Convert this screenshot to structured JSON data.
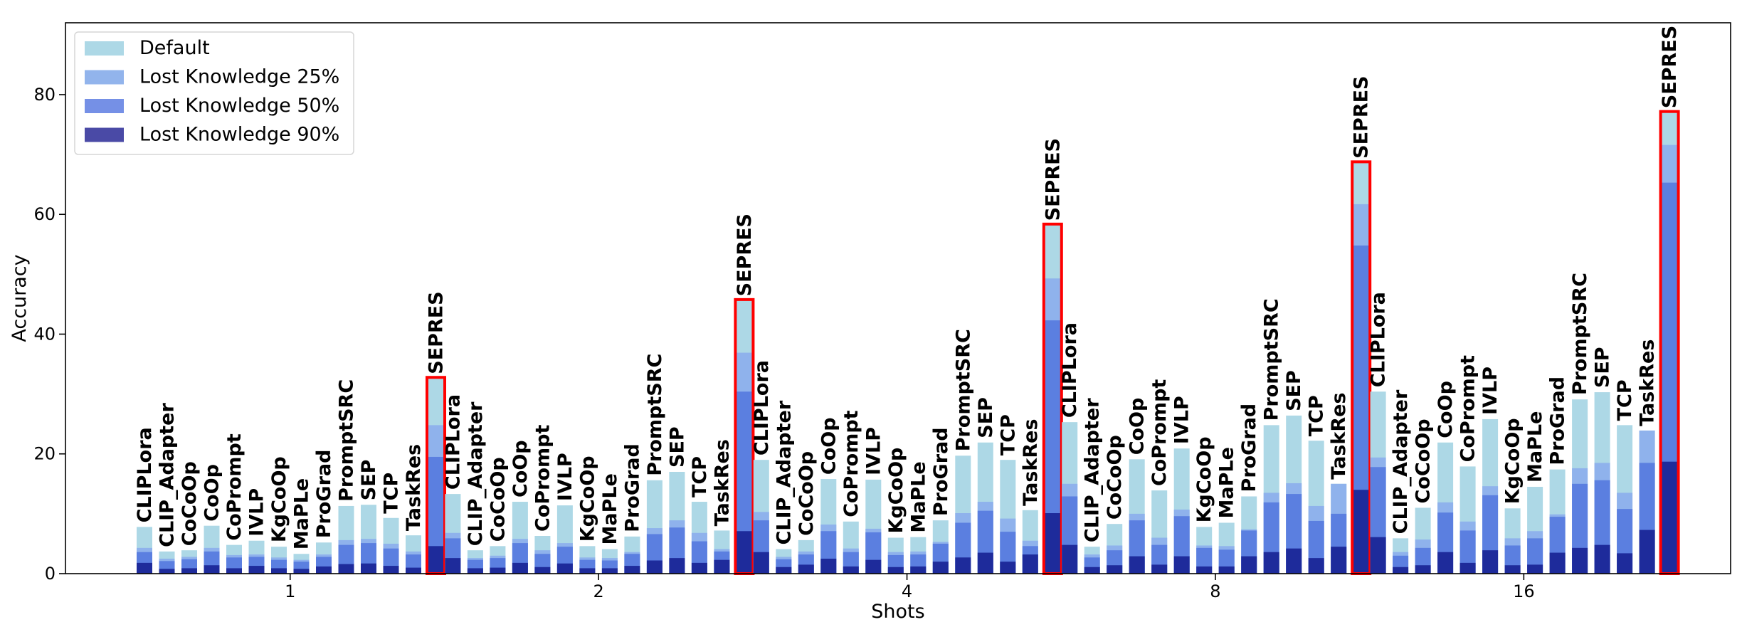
{
  "chart_data": {
    "type": "bar",
    "stacked": true,
    "xlabel": "Shots",
    "ylabel": "Accuracy",
    "ylim": [
      0,
      92
    ],
    "yticks": [
      0,
      20,
      40,
      60,
      80
    ],
    "groups": [
      "1",
      "2",
      "4",
      "8",
      "16"
    ],
    "methods": [
      "CLIPLora",
      "CLIP_Adapter",
      "CoCoOp",
      "CoOp",
      "CoPrompt",
      "IVLP",
      "KgCoOp",
      "MaPLe",
      "ProGrad",
      "PromptSRC",
      "SEP",
      "TCP",
      "TaskRes",
      "SEPRES"
    ],
    "highlighted_method": "SEPRES",
    "highlight_color": "#ff0000",
    "legend": {
      "position": "upper-left",
      "entries": [
        {
          "name": "Default",
          "color": "#add8e6"
        },
        {
          "name": "Lost Knowledge 25%",
          "color": "#92b4ec"
        },
        {
          "name": "Lost Knowledge 50%",
          "color": "#7590e6"
        },
        {
          "name": "Lost Knowledge 90%",
          "color": "#4a4aa6"
        }
      ]
    },
    "series_colors": [
      "#add8e6",
      "#8fb2ec",
      "#5b7fe0",
      "#1e2b9b"
    ],
    "series": [
      {
        "name": "Default",
        "values": [
          [
            7.8,
            3.7,
            3.9,
            8.0,
            4.8,
            5.5,
            4.5,
            3.3,
            5.2,
            11.3,
            11.5,
            9.3,
            6.4,
            32.6
          ],
          [
            13.3,
            3.9,
            4.6,
            12.0,
            6.3,
            11.4,
            4.6,
            4.1,
            6.2,
            15.6,
            17.0,
            12.0,
            7.2,
            45.6
          ],
          [
            19.0,
            4.1,
            5.6,
            15.8,
            8.7,
            15.7,
            6.0,
            6.1,
            8.9,
            19.7,
            21.9,
            19.0,
            10.6,
            58.2
          ],
          [
            25.3,
            4.5,
            8.3,
            19.1,
            13.9,
            20.9,
            7.8,
            8.5,
            12.9,
            24.8,
            26.4,
            22.2,
            15.0,
            68.6
          ],
          [
            30.4,
            5.9,
            11.0,
            21.9,
            17.9,
            25.8,
            10.9,
            14.5,
            17.4,
            29.1,
            30.3,
            24.8,
            23.9,
            77.0
          ]
        ]
      },
      {
        "name": "Lost Knowledge 25%",
        "values": [
          [
            4.3,
            2.5,
            2.8,
            4.3,
            3.1,
            3.2,
            2.7,
            2.3,
            3.2,
            5.6,
            5.8,
            5.0,
            3.7,
            24.8
          ],
          [
            6.8,
            2.6,
            3.0,
            5.8,
            3.9,
            5.1,
            2.7,
            2.6,
            3.6,
            7.6,
            8.9,
            6.8,
            4.1,
            36.9
          ],
          [
            10.3,
            2.8,
            3.7,
            8.2,
            4.2,
            7.5,
            3.6,
            3.7,
            5.3,
            10.1,
            12.0,
            9.2,
            5.5,
            49.3
          ],
          [
            15.0,
            3.2,
            4.7,
            10.0,
            6.0,
            10.7,
            4.7,
            4.6,
            7.4,
            13.5,
            15.1,
            11.3,
            15.0,
            61.7
          ],
          [
            19.4,
            3.6,
            5.7,
            11.9,
            8.7,
            14.6,
            5.9,
            7.1,
            9.9,
            17.6,
            18.5,
            13.5,
            23.9,
            71.6
          ]
        ]
      },
      {
        "name": "Lost Knowledge 50%",
        "values": [
          [
            3.6,
            2.1,
            2.4,
            3.7,
            2.7,
            2.8,
            2.3,
            2.0,
            2.8,
            4.8,
            5.1,
            4.2,
            3.2,
            19.5
          ],
          [
            5.9,
            2.3,
            2.6,
            5.1,
            3.3,
            4.5,
            2.3,
            2.2,
            3.3,
            6.6,
            7.7,
            5.4,
            3.7,
            30.4
          ],
          [
            8.9,
            2.4,
            3.2,
            7.1,
            3.6,
            6.9,
            3.1,
            3.2,
            5.0,
            8.5,
            10.5,
            7.0,
            4.6,
            42.3
          ],
          [
            12.9,
            2.7,
            3.9,
            8.9,
            4.8,
            9.6,
            4.3,
            4.0,
            7.2,
            11.9,
            13.3,
            8.8,
            10.0,
            54.8
          ],
          [
            17.8,
            3.0,
            4.3,
            10.2,
            7.2,
            13.1,
            4.7,
            5.9,
            9.5,
            15.0,
            15.6,
            10.8,
            18.5,
            65.3
          ]
        ]
      },
      {
        "name": "Lost Knowledge 90%",
        "values": [
          [
            1.8,
            0.8,
            0.9,
            1.4,
            0.9,
            1.3,
            0.9,
            0.8,
            1.2,
            1.6,
            1.7,
            1.3,
            1.0,
            4.6
          ],
          [
            2.6,
            0.9,
            1.0,
            1.8,
            1.1,
            1.7,
            0.9,
            0.9,
            1.3,
            2.2,
            2.6,
            1.8,
            2.3,
            7.1
          ],
          [
            3.6,
            1.1,
            1.5,
            2.5,
            1.2,
            2.3,
            1.1,
            1.2,
            2.0,
            2.7,
            3.5,
            2.0,
            3.2,
            10.1
          ],
          [
            4.8,
            1.1,
            1.4,
            2.9,
            1.5,
            2.9,
            1.2,
            1.2,
            2.9,
            3.6,
            4.2,
            2.6,
            4.5,
            14.0
          ],
          [
            6.1,
            1.1,
            1.4,
            3.6,
            1.8,
            3.9,
            1.4,
            1.5,
            3.5,
            4.3,
            4.8,
            3.4,
            7.3,
            18.7
          ]
        ]
      }
    ]
  }
}
